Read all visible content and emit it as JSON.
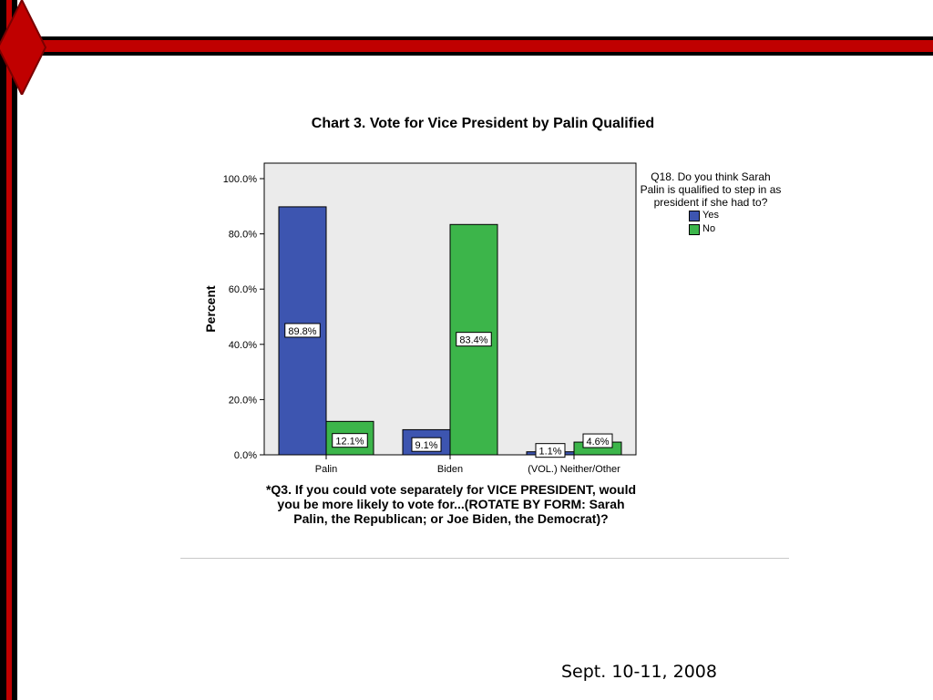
{
  "slide": {
    "date": "Sept. 10-11, 2008",
    "accent": "#c00000"
  },
  "chart_data": {
    "type": "bar",
    "title": "Chart 3. Vote for Vice President by Palin Qualified",
    "ylabel": "Percent",
    "xlabel": "*Q3. If you could vote separately for VICE PRESIDENT, would you  be more likely to vote for...(ROTATE BY FORM: Sarah Palin, the Republican; or Joe Biden, the Democrat)?",
    "categories": [
      "Palin",
      "Biden",
      "(VOL.) Neither/Other"
    ],
    "ylim": [
      0,
      100
    ],
    "yticks": [
      0,
      20,
      40,
      60,
      80,
      100
    ],
    "ytick_labels": [
      "0.0%",
      "20.0%",
      "40.0%",
      "60.0%",
      "80.0%",
      "100.0%"
    ],
    "grid": false,
    "legend_position": "right",
    "legend_title": "Q18. Do you think Sarah Palin is qualified to step in as president if she had to?",
    "series": [
      {
        "name": "Yes",
        "color": "#3d55b0",
        "values": [
          89.8,
          9.1,
          1.1
        ],
        "labels": [
          "89.8%",
          "9.1%",
          "1.1%"
        ]
      },
      {
        "name": "No",
        "color": "#3cb54a",
        "values": [
          12.1,
          83.4,
          4.6
        ],
        "labels": [
          "12.1%",
          "83.4%",
          "4.6%"
        ]
      }
    ]
  }
}
